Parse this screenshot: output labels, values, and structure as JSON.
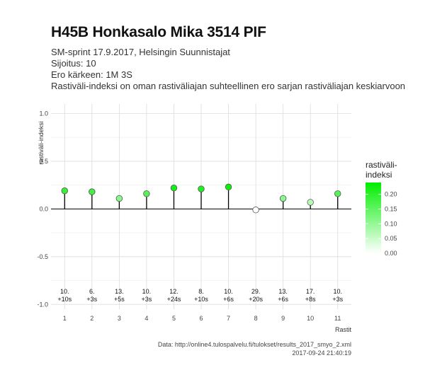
{
  "header": {
    "title": "H45B Honkasalo Mika 3514 PIF",
    "subtitle_lines": [
      "SM-sprint 17.9.2017, Helsingin Suunnistajat",
      "Sijoitus: 10",
      "Ero kärkeen: 1M 3S",
      "Rastiväli-indeksi on oman rastiväliajan suhteellinen ero sarjan rastiväliajan keskiarvoon"
    ]
  },
  "chart_data": {
    "type": "lollipop",
    "xlabel": "Rastit",
    "ylabel": "rastiväli-indeksi",
    "ylim": [
      -1.05,
      1.1
    ],
    "yticks": [
      -1.0,
      -0.5,
      0.0,
      0.5,
      1.0
    ],
    "ytick_labels": [
      "-1.0",
      "-0.5",
      "0.0",
      "0.5",
      "1.0"
    ],
    "x": [
      1,
      2,
      3,
      4,
      5,
      6,
      7,
      8,
      9,
      10,
      11
    ],
    "x_labels": [
      "1",
      "2",
      "3",
      "4",
      "5",
      "6",
      "7",
      "8",
      "9",
      "10",
      "11"
    ],
    "values": [
      0.19,
      0.18,
      0.11,
      0.16,
      0.22,
      0.21,
      0.23,
      -0.01,
      0.11,
      0.07,
      0.16
    ],
    "annotations": [
      [
        "10.",
        "+10s"
      ],
      [
        "6.",
        "+3s"
      ],
      [
        "13.",
        "+5s"
      ],
      [
        "10.",
        "+3s"
      ],
      [
        "12.",
        "+24s"
      ],
      [
        "8.",
        "+10s"
      ],
      [
        "10.",
        "+6s"
      ],
      [
        "29.",
        "+20s"
      ],
      [
        "13.",
        "+6s"
      ],
      [
        "17.",
        "+8s"
      ],
      [
        "10.",
        "+3s"
      ]
    ],
    "grid": true,
    "legend": {
      "title_lines": [
        "rastiväli-",
        "indeksi"
      ],
      "placement": "right",
      "range": [
        0.0,
        0.24
      ],
      "ticks": [
        0.0,
        0.05,
        0.1,
        0.15,
        0.2
      ],
      "tick_labels": [
        "0.00",
        "0.05",
        "0.10",
        "0.15",
        "0.20"
      ],
      "color_low": "#ffffff",
      "color_high": "#00ee00"
    }
  },
  "caption": {
    "source": "Data: http://online4.tulospalvelu.fi/tulokset/results_2017_smyo_2.xml",
    "timestamp": "2017-09-24 21:40:19"
  }
}
